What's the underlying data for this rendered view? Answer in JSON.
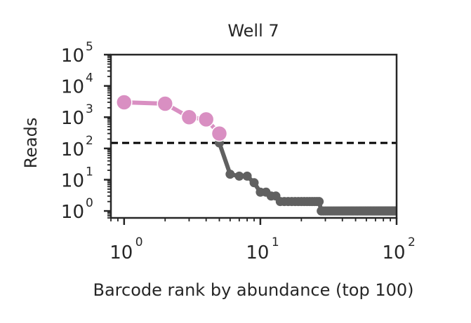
{
  "chart_data": {
    "type": "line",
    "title": "Well 7",
    "xlabel": "Barcode rank by abundance (top 100)",
    "ylabel": "Reads",
    "xscale": "log",
    "yscale": "log",
    "xlim": [
      0.8,
      100
    ],
    "ylim": [
      0.6,
      100000
    ],
    "x_ticks": [
      1,
      10,
      100
    ],
    "y_ticks": [
      1,
      10,
      100,
      1000,
      10000,
      100000
    ],
    "tick_base": "10",
    "x_tick_exponents": [
      "0",
      "1",
      "2"
    ],
    "y_tick_exponents": [
      "0",
      "1",
      "2",
      "3",
      "4",
      "5"
    ],
    "grid": false,
    "threshold": 150,
    "series": [
      {
        "color": "#d98fc2",
        "marker": "large-circle",
        "x": [
          1,
          2,
          3,
          4,
          5
        ],
        "y": [
          3000,
          2700,
          1000,
          850,
          300
        ]
      },
      {
        "color": "#606060",
        "marker": "small-circle",
        "x": [
          5,
          6,
          7,
          8,
          9,
          10,
          11,
          12,
          13,
          14,
          15,
          16,
          17,
          18,
          19,
          20,
          21,
          22,
          23,
          24,
          25,
          26,
          27,
          28,
          29,
          30,
          31,
          32,
          33,
          34,
          35,
          36,
          37,
          38,
          39,
          40,
          41,
          42,
          43,
          44,
          45,
          46,
          47,
          48,
          49,
          50,
          51,
          52,
          53,
          54,
          55,
          56,
          57,
          58,
          59,
          60,
          61,
          62,
          63,
          64,
          65,
          66,
          67,
          68,
          69,
          70,
          71,
          72,
          73,
          74,
          75,
          76,
          77,
          78,
          79,
          80,
          81,
          82,
          83,
          84,
          85,
          86,
          87,
          88,
          89,
          90,
          91,
          92,
          93,
          94,
          95,
          96,
          97,
          98,
          99,
          100
        ],
        "y": [
          150,
          15,
          13,
          13,
          8,
          4,
          4,
          3,
          3,
          2,
          2,
          2,
          2,
          2,
          2,
          2,
          2,
          2,
          2,
          2,
          2,
          2,
          2,
          1,
          1,
          1,
          1,
          1,
          1,
          1,
          1,
          1,
          1,
          1,
          1,
          1,
          1,
          1,
          1,
          1,
          1,
          1,
          1,
          1,
          1,
          1,
          1,
          1,
          1,
          1,
          1,
          1,
          1,
          1,
          1,
          1,
          1,
          1,
          1,
          1,
          1,
          1,
          1,
          1,
          1,
          1,
          1,
          1,
          1,
          1,
          1,
          1,
          1,
          1,
          1,
          1,
          1,
          1,
          1,
          1,
          1,
          1,
          1,
          1,
          1,
          1,
          1,
          1,
          1,
          1,
          1,
          1,
          1,
          1,
          1,
          1
        ]
      }
    ]
  }
}
